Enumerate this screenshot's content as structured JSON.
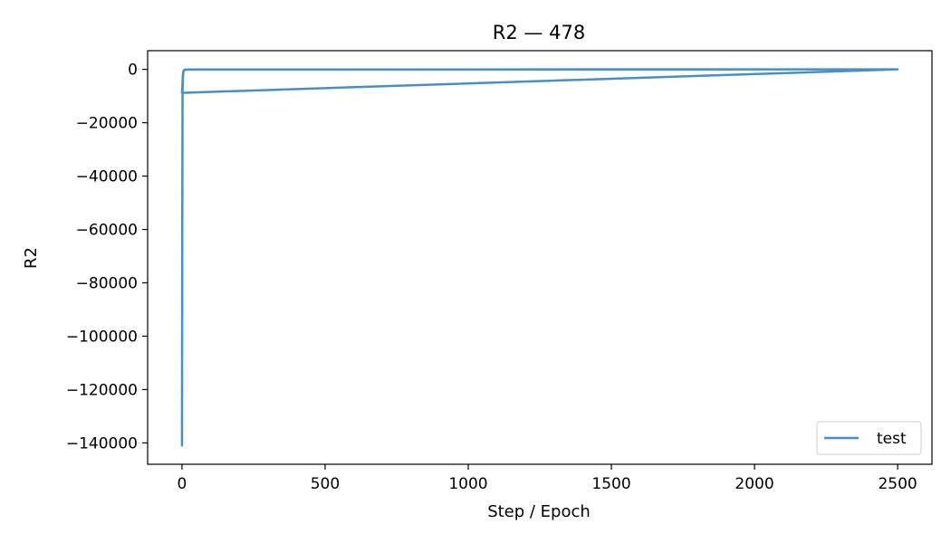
{
  "chart_data": {
    "type": "line",
    "title": "R2 — 478",
    "xlabel": "Step / Epoch",
    "ylabel": "R2",
    "xlim": [
      -120,
      2620
    ],
    "ylim": [
      -148000,
      7000
    ],
    "xticks": [
      0,
      500,
      1000,
      1500,
      2000,
      2500
    ],
    "xtick_labels": [
      "0",
      "500",
      "1000",
      "1500",
      "2000",
      "2500"
    ],
    "yticks": [
      0,
      -20000,
      -40000,
      -60000,
      -80000,
      -100000,
      -120000,
      -140000
    ],
    "ytick_labels": [
      "0",
      "−20000",
      "−40000",
      "−60000",
      "−80000",
      "−100000",
      "−120000",
      "−140000"
    ],
    "grid": false,
    "legend": "lower-right",
    "series": [
      {
        "name": "test",
        "color": "#4a8fc0",
        "x": [
          0,
          1,
          2,
          3,
          4,
          5,
          6,
          8,
          10,
          2500,
          0,
          1,
          2,
          3,
          5,
          8,
          12,
          20,
          50,
          2500
        ],
        "y": [
          -141000,
          -60000,
          -8000,
          -4000,
          -2000,
          -1000,
          -500,
          -200,
          -100,
          0,
          -8800,
          -7000,
          -5000,
          -2000,
          -800,
          -300,
          -150,
          -80,
          -30,
          0
        ]
      }
    ]
  }
}
